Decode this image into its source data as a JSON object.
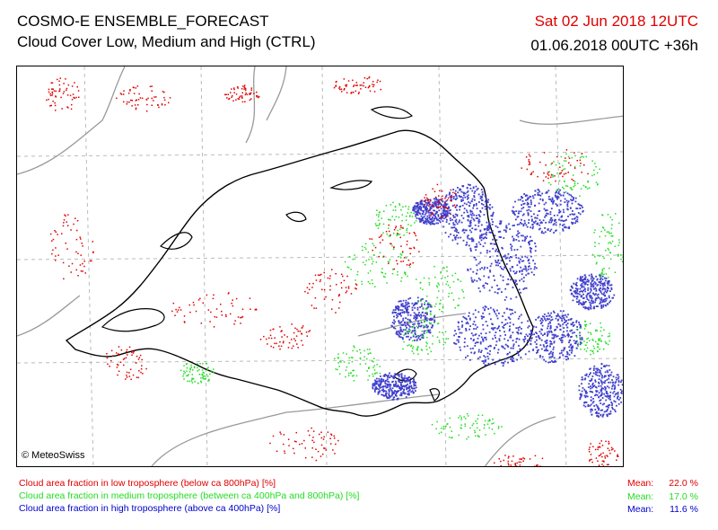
{
  "header": {
    "title": "COSMO-E ENSEMBLE_FORECAST",
    "subtitle": "Cloud Cover Low, Medium and High (CTRL)",
    "valid_time": "Sat 02 Jun 2018 12UTC",
    "run_time": "01.06.2018 00UTC +36h"
  },
  "map": {
    "credit": "© MeteoSwiss",
    "colors": {
      "low": "#e00000",
      "medium": "#22dd22",
      "high": "#4040cc",
      "border": "#000000",
      "neighbor": "#999999",
      "grid": "#bbbbbb"
    }
  },
  "legend": [
    {
      "label": "Cloud area fraction in low troposphere (below ca 800hPa) [%]",
      "mean_label": "Mean:",
      "mean_value": "22.0 %"
    },
    {
      "label": "Cloud area fraction in medium troposphere (between ca 400hPa and 800hPa) [%]",
      "mean_label": "Mean:",
      "mean_value": "17.0 %"
    },
    {
      "label": "Cloud area fraction in high troposphere (above ca 400hPa) [%]",
      "mean_label": "Mean:",
      "mean_value": "11.6 %"
    }
  ]
}
